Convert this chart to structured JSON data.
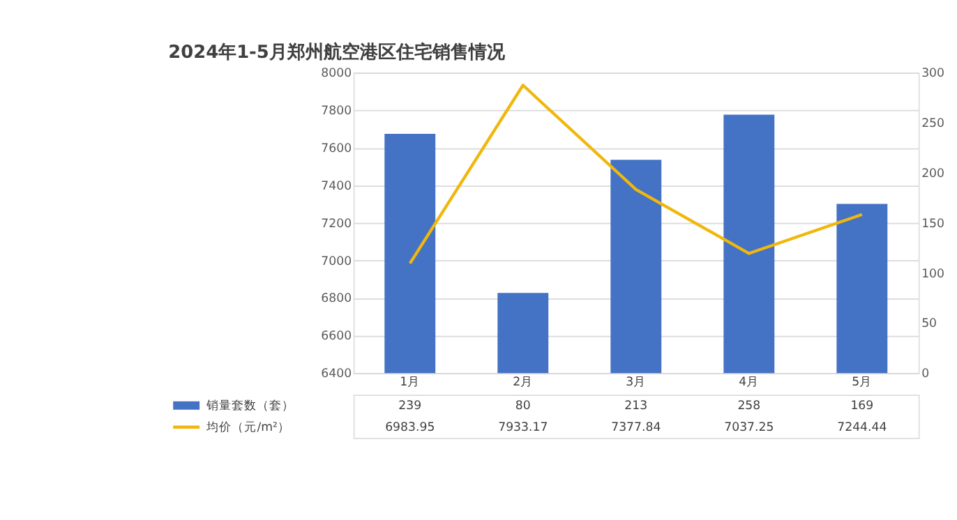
{
  "chart_data": {
    "type": "bar",
    "title": "2024年1-5月郑州航空港区住宅销售情况",
    "categories": [
      "1月",
      "2月",
      "3月",
      "4月",
      "5月"
    ],
    "series": [
      {
        "name": "销量套数（套）",
        "axis": "y2",
        "color": "#4472c4",
        "values": [
          239,
          80,
          213,
          258,
          169
        ]
      },
      {
        "name": "均价（元/m²）",
        "type": "line",
        "axis": "y",
        "color": "#f0b70c",
        "values": [
          6983.95,
          7933.17,
          7377.84,
          7037.25,
          7244.44
        ]
      }
    ],
    "ylim": [
      6400,
      8000
    ],
    "yticks": [
      6400,
      6600,
      6800,
      7000,
      7200,
      7400,
      7600,
      7800,
      8000
    ],
    "y2lim": [
      0,
      300
    ],
    "y2ticks": [
      0,
      50,
      100,
      150,
      200,
      250,
      300
    ],
    "grid": "y",
    "legend": "bottom",
    "data_labels": true,
    "marker": "none",
    "line_style": "solid"
  }
}
